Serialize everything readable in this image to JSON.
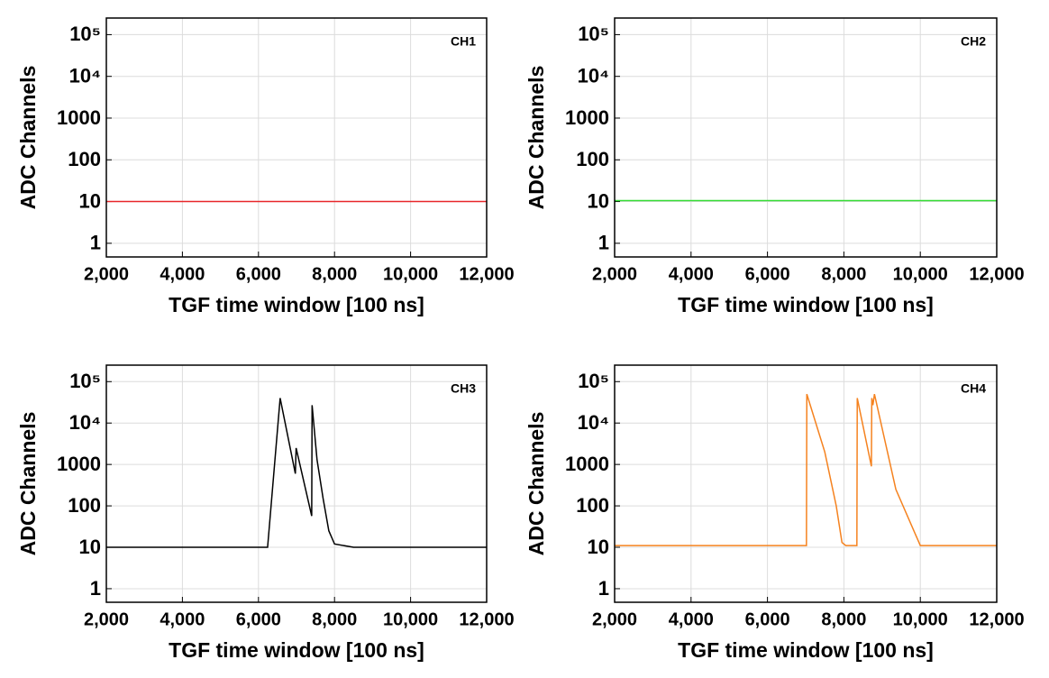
{
  "chart_data": [
    {
      "type": "line",
      "label": "CH1",
      "xlabel": "TGF time window [100 ns]",
      "ylabel": "ADC Channels",
      "x": [
        2000,
        12000
      ],
      "values": [
        10,
        10
      ],
      "color": "#e8262a",
      "xlim": [
        2000,
        12000
      ],
      "ylim": [
        0.47,
        250000
      ],
      "ylog": true,
      "grid": true,
      "xticks": [
        {
          "value": 2000,
          "label": "2,000"
        },
        {
          "value": 4000,
          "label": "4,000"
        },
        {
          "value": 6000,
          "label": "6,000"
        },
        {
          "value": 8000,
          "label": "8,000"
        },
        {
          "value": 10000,
          "label": "10,000"
        },
        {
          "value": 12000,
          "label": "12,000"
        }
      ],
      "yticks": [
        1,
        10,
        100,
        1000,
        {
          "value": 10000,
          "label": "10⁴"
        },
        {
          "value": 100000,
          "label": "10⁵"
        }
      ]
    },
    {
      "type": "line",
      "label": "CH2",
      "xlabel": "TGF time window [100 ns]",
      "ylabel": "ADC Channels",
      "x": [
        2000,
        12000
      ],
      "values": [
        10.5,
        10.5
      ],
      "color": "#33dd33",
      "xlim": [
        2000,
        12000
      ],
      "ylim": [
        0.47,
        250000
      ],
      "ylog": true,
      "grid": true,
      "xticks": [
        {
          "value": 2000,
          "label": "2,000"
        },
        {
          "value": 4000,
          "label": "4,000"
        },
        {
          "value": 6000,
          "label": "6,000"
        },
        {
          "value": 8000,
          "label": "8,000"
        },
        {
          "value": 10000,
          "label": "10,000"
        },
        {
          "value": 12000,
          "label": "12,000"
        }
      ],
      "yticks": [
        1,
        10,
        100,
        1000,
        {
          "value": 10000,
          "label": "10⁴"
        },
        {
          "value": 100000,
          "label": "10⁵"
        }
      ]
    },
    {
      "type": "line",
      "label": "CH3",
      "xlabel": "TGF time window [100 ns]",
      "ylabel": "ADC Channels",
      "x": [
        2000,
        6240,
        6570,
        6970,
        6990,
        7400,
        7410,
        7540,
        7700,
        7850,
        8000,
        8500,
        12000
      ],
      "values": [
        10,
        10,
        40000,
        600,
        2500,
        57,
        27000,
        1300,
        150,
        25,
        12,
        10,
        10
      ],
      "color": "#000000",
      "xlim": [
        2000,
        12000
      ],
      "ylim": [
        0.47,
        250000
      ],
      "ylog": true,
      "grid": true,
      "xticks": [
        {
          "value": 2000,
          "label": "2,000"
        },
        {
          "value": 4000,
          "label": "4,000"
        },
        {
          "value": 6000,
          "label": "6,000"
        },
        {
          "value": 8000,
          "label": "8,000"
        },
        {
          "value": 10000,
          "label": "10,000"
        },
        {
          "value": 12000,
          "label": "12,000"
        }
      ],
      "yticks": [
        1,
        10,
        100,
        1000,
        {
          "value": 10000,
          "label": "10⁴"
        },
        {
          "value": 100000,
          "label": "10⁵"
        }
      ]
    },
    {
      "type": "line",
      "label": "CH4",
      "xlabel": "TGF time window [100 ns]",
      "ylabel": "ADC Channels",
      "x": [
        2000,
        7020,
        7030,
        7500,
        7800,
        7950,
        8050,
        8340,
        8350,
        8720,
        8730,
        8760,
        8800,
        9360,
        10000,
        12000
      ],
      "values": [
        11,
        11,
        50000,
        2000,
        100,
        13,
        11,
        11,
        40000,
        900,
        40000,
        27000,
        50000,
        250,
        11,
        11
      ],
      "color": "#f5821f",
      "xlim": [
        2000,
        12000
      ],
      "ylim": [
        0.47,
        250000
      ],
      "ylog": true,
      "grid": true,
      "xticks": [
        {
          "value": 2000,
          "label": "2,000"
        },
        {
          "value": 4000,
          "label": "4,000"
        },
        {
          "value": 6000,
          "label": "6,000"
        },
        {
          "value": 8000,
          "label": "8,000"
        },
        {
          "value": 10000,
          "label": "10,000"
        },
        {
          "value": 12000,
          "label": "12,000"
        }
      ],
      "yticks": [
        1,
        10,
        100,
        1000,
        {
          "value": 10000,
          "label": "10⁴"
        },
        {
          "value": 100000,
          "label": "10⁵"
        }
      ]
    }
  ]
}
